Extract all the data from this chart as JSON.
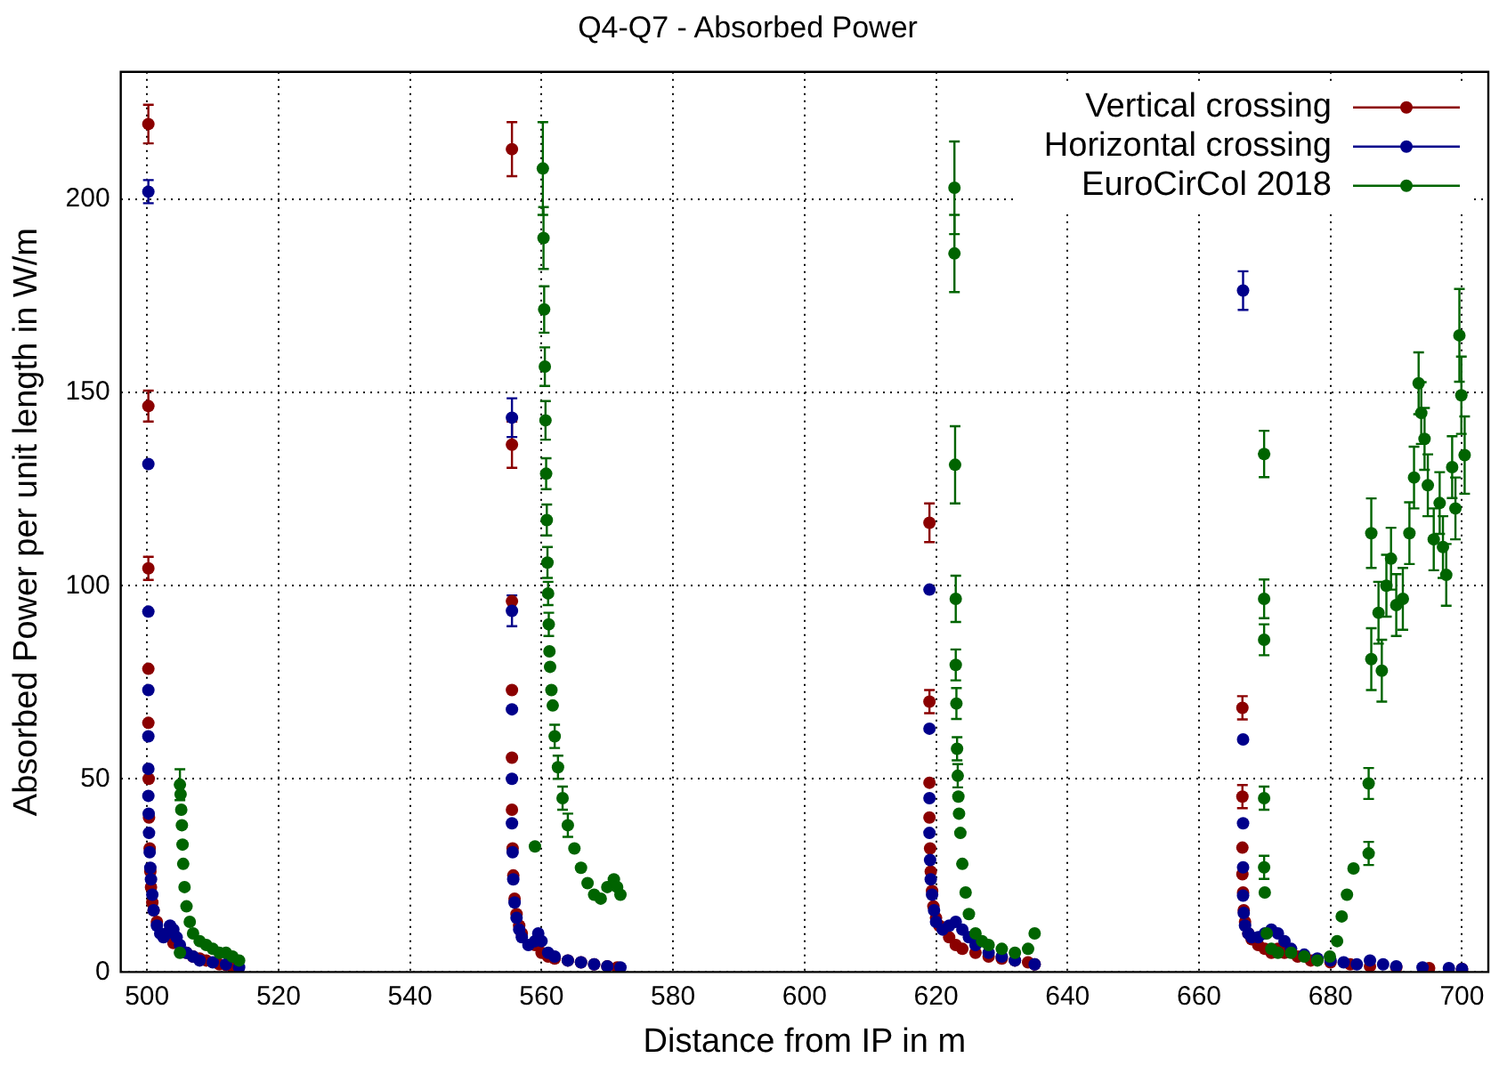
{
  "chart_data": {
    "type": "scatter",
    "title": "Q4-Q7 - Absorbed Power",
    "xlabel": "Distance from IP in m",
    "ylabel": "Absorbed Power per unit length in W/m",
    "xlim": [
      496,
      704
    ],
    "xticks": [
      500,
      520,
      540,
      560,
      580,
      600,
      620,
      640,
      660,
      680,
      700
    ],
    "ylim": [
      0,
      233
    ],
    "yticks": [
      0,
      50,
      100,
      150,
      200
    ],
    "grid": true,
    "legend": "top right",
    "marker": "circle",
    "series": [
      {
        "name": "Vertical crossing",
        "color": "#8b0000",
        "x": [
          500.2,
          500.2,
          500.2,
          500.2,
          500.2,
          500.25,
          500.3,
          500.4,
          500.5,
          500.6,
          500.8,
          501,
          501.5,
          504,
          506,
          507,
          508,
          509,
          511,
          512,
          513,
          555.5,
          555.5,
          555.5,
          555.5,
          555.5,
          555.5,
          555.6,
          555.7,
          555.9,
          556.2,
          556.6,
          557,
          559,
          560,
          561,
          562,
          564,
          566,
          568,
          570,
          571.5,
          619,
          619,
          619,
          619,
          619.1,
          619.2,
          619.4,
          619.6,
          620,
          620.5,
          622,
          623,
          624,
          626,
          628,
          630,
          632,
          634,
          635,
          666.6,
          666.6,
          666.6,
          666.6,
          666.7,
          666.8,
          667,
          667.5,
          668,
          669,
          670,
          671,
          672,
          673,
          675,
          677,
          680,
          683,
          686,
          690,
          695,
          700
        ],
        "values": [
          219.5,
          146.5,
          104.5,
          78.5,
          64.5,
          50,
          40,
          32,
          26,
          22,
          18,
          16,
          13,
          7.5,
          5,
          4,
          3.5,
          3,
          2,
          1.8,
          1.5,
          213,
          136.5,
          96,
          73,
          55.5,
          42,
          32,
          25,
          19,
          15,
          12,
          10,
          7,
          5,
          4,
          3.5,
          3,
          2.5,
          2,
          1.5,
          1.2,
          116.3,
          70,
          49,
          40,
          32,
          26,
          21,
          17,
          14,
          12,
          9,
          7,
          6,
          5,
          4,
          3.5,
          3,
          2.5,
          2,
          68.4,
          45.4,
          32.2,
          25.3,
          20.6,
          16,
          13,
          10,
          8.5,
          7,
          6,
          5,
          6,
          5,
          4,
          3,
          2.5,
          2,
          1.5,
          1.2,
          1,
          0.8
        ],
        "errors": [
          5,
          4,
          3,
          null,
          null,
          null,
          null,
          null,
          null,
          null,
          null,
          null,
          null,
          null,
          null,
          null,
          null,
          null,
          null,
          null,
          null,
          7,
          6,
          null,
          null,
          null,
          null,
          null,
          null,
          null,
          null,
          null,
          null,
          null,
          null,
          null,
          null,
          null,
          null,
          null,
          null,
          null,
          5,
          3,
          null,
          null,
          null,
          null,
          null,
          null,
          null,
          null,
          null,
          null,
          null,
          null,
          null,
          null,
          null,
          null,
          null,
          3,
          3,
          null,
          null,
          null,
          null,
          null,
          null,
          null,
          null,
          null,
          null,
          null,
          null,
          null,
          null,
          null,
          null,
          null,
          null,
          null,
          null
        ]
      },
      {
        "name": "Horizontal crossing",
        "color": "#00008b",
        "x": [
          500.2,
          500.2,
          500.2,
          500.2,
          500.2,
          500.2,
          500.2,
          500.25,
          500.3,
          500.4,
          500.5,
          500.6,
          500.8,
          501,
          501.5,
          502,
          502.5,
          503,
          503.5,
          504,
          504.5,
          505,
          506,
          507,
          508,
          510,
          512,
          514,
          555.5,
          555.5,
          555.5,
          555.5,
          555.5,
          555.6,
          555.7,
          555.9,
          556.2,
          556.6,
          557,
          558,
          559,
          559.5,
          560,
          561,
          562,
          564,
          566,
          568,
          570,
          572,
          619,
          619,
          619,
          619,
          619.1,
          619.2,
          619.4,
          619.7,
          620,
          621,
          622,
          623,
          624,
          625,
          626,
          628,
          630,
          632,
          635,
          666.7,
          666.7,
          666.7,
          666.7,
          666.7,
          666.8,
          667,
          667.5,
          668,
          669,
          670,
          671,
          672,
          673,
          674,
          676,
          678,
          680,
          682,
          684,
          686,
          688,
          690,
          694,
          698,
          700
        ],
        "values": [
          202,
          131.5,
          93.3,
          73,
          61,
          52.6,
          45.6,
          41,
          36,
          31,
          27,
          24,
          20,
          16,
          12,
          10,
          9,
          10,
          12,
          11,
          9,
          7,
          5,
          4,
          3,
          2.5,
          2,
          1.2,
          143.5,
          93.5,
          68,
          50,
          38.5,
          31,
          24,
          18,
          14,
          11,
          9,
          7,
          8,
          10,
          8,
          5,
          4,
          3,
          2.5,
          2,
          1.5,
          1.2,
          99,
          63,
          45,
          36,
          29,
          24,
          20,
          16,
          13,
          11,
          12,
          13,
          11,
          9,
          7,
          5,
          4,
          3,
          2,
          176.4,
          60.2,
          38.5,
          27.1,
          19.8,
          15.3,
          12,
          10,
          9,
          9,
          10,
          11,
          10,
          8,
          6,
          4.5,
          3.5,
          3,
          2.5,
          2,
          3,
          2,
          1.5,
          1.2,
          1,
          0.8
        ],
        "errors": [
          3,
          null,
          null,
          null,
          null,
          null,
          null,
          null,
          null,
          null,
          null,
          null,
          null,
          null,
          null,
          null,
          null,
          null,
          null,
          null,
          null,
          null,
          null,
          null,
          null,
          null,
          null,
          null,
          5,
          4,
          null,
          null,
          null,
          null,
          null,
          null,
          null,
          null,
          null,
          null,
          null,
          null,
          null,
          null,
          null,
          null,
          null,
          null,
          null,
          null,
          null,
          null,
          null,
          null,
          null,
          null,
          null,
          null,
          null,
          null,
          null,
          null,
          null,
          null,
          null,
          null,
          null,
          null,
          null,
          5,
          null,
          null,
          null,
          null,
          null,
          null,
          null,
          null,
          null,
          null,
          null,
          null,
          null,
          null,
          null,
          null,
          null,
          null,
          null,
          null,
          null,
          null,
          null,
          null,
          null
        ]
      },
      {
        "name": "EuroCirCol 2018",
        "color": "#006400",
        "x": [
          505,
          505,
          505.1,
          505.2,
          505.3,
          505.4,
          505.5,
          505.7,
          506,
          506.5,
          507,
          508,
          509,
          510,
          511,
          512,
          513,
          514,
          559,
          560.2,
          560.3,
          560.4,
          560.5,
          560.6,
          560.7,
          560.8,
          560.9,
          561,
          561.1,
          561.2,
          561.3,
          561.5,
          561.7,
          562,
          562.5,
          563.2,
          564,
          565,
          566,
          567,
          568,
          569,
          570,
          571,
          571.5,
          572,
          622.8,
          622.8,
          622.9,
          623,
          623,
          623.1,
          623.2,
          623.3,
          623.4,
          623.5,
          623.7,
          624,
          624.5,
          625,
          626,
          627,
          628,
          630,
          632,
          634,
          635,
          669.9,
          669.9,
          669.9,
          669.9,
          669.9,
          670,
          670.3,
          671,
          672,
          674,
          676,
          678,
          679.9,
          681,
          681.7,
          682.5,
          683.5,
          685.8,
          685.8,
          686.2,
          686.2,
          687.3,
          687.8,
          688.5,
          689.2,
          690,
          691,
          692,
          692.7,
          693.4,
          693.8,
          694.3,
          694.8,
          695.7,
          696.6,
          697.1,
          697.6,
          698.5,
          699,
          699.6,
          699.9,
          700.4
        ],
        "values": [
          48.5,
          5,
          46,
          42,
          38,
          33,
          28,
          22,
          17,
          13,
          10,
          8,
          7,
          6,
          5,
          5,
          4,
          3,
          32.5,
          208,
          190,
          171.5,
          156.7,
          142.8,
          129,
          117,
          106,
          98,
          90,
          83,
          79,
          73,
          69,
          61,
          53,
          45,
          38,
          32,
          27,
          23,
          20,
          19,
          22,
          24,
          22,
          20,
          203,
          186,
          131.3,
          96.6,
          79.5,
          69.5,
          57.8,
          50.8,
          45.4,
          41,
          36,
          28,
          20.6,
          15,
          10,
          8,
          7,
          6,
          5,
          6,
          10,
          134.1,
          96.6,
          86,
          45,
          27.1,
          20.6,
          10,
          6,
          5,
          5,
          4,
          3,
          4,
          8,
          14.4,
          20,
          26.8,
          30.7,
          48.8,
          113.6,
          81,
          93,
          78,
          100,
          107,
          95,
          96.6,
          113.6,
          128,
          152.4,
          144.7,
          138,
          126,
          112,
          121.4,
          110,
          102.8,
          130.7,
          120,
          164.8,
          149.3,
          133.8
        ],
        "errors": [
          4,
          null,
          null,
          null,
          null,
          null,
          null,
          null,
          null,
          null,
          null,
          null,
          null,
          null,
          null,
          null,
          null,
          null,
          null,
          12,
          8,
          6,
          5,
          5,
          4,
          4,
          4,
          3,
          3,
          null,
          null,
          null,
          null,
          3,
          3,
          3,
          3,
          null,
          null,
          null,
          null,
          null,
          null,
          null,
          null,
          null,
          12,
          10,
          10,
          6,
          4,
          4,
          3,
          3,
          null,
          null,
          null,
          null,
          null,
          null,
          null,
          null,
          null,
          null,
          null,
          null,
          null,
          6,
          5,
          4,
          3,
          3,
          null,
          null,
          null,
          null,
          null,
          null,
          null,
          null,
          null,
          null,
          null,
          null,
          3,
          4,
          9,
          8,
          8,
          8,
          8,
          8,
          8,
          8,
          8,
          8,
          8,
          8,
          8,
          8,
          8,
          8,
          8,
          8,
          8,
          8,
          12,
          10,
          10
        ]
      }
    ]
  }
}
